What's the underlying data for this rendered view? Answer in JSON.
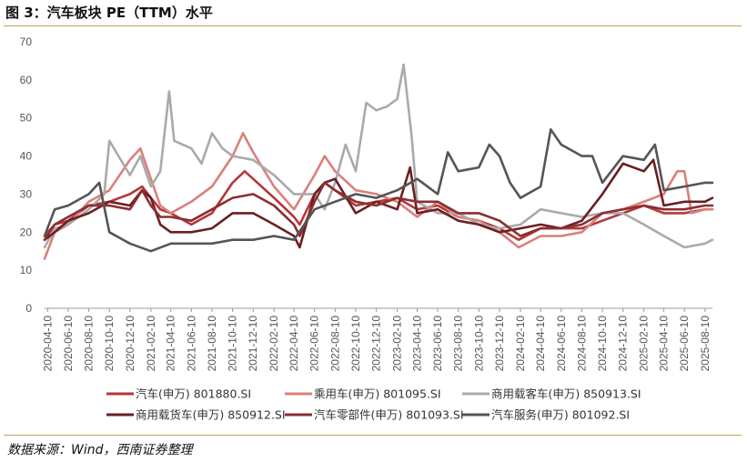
{
  "title": "图 3：汽车板块 PE（TTM）水平",
  "source": "数据来源：Wind，西南证券整理",
  "chart_data": {
    "type": "line",
    "title": "汽车板块 PE（TTM）水平",
    "xlabel": "",
    "ylabel": "",
    "ylim": [
      0,
      70
    ],
    "yticks": [
      0,
      10,
      20,
      30,
      40,
      50,
      60,
      70
    ],
    "grid": false,
    "legend_position": "bottom",
    "x_start": "2020-04-01",
    "x_end": "2025-09-01",
    "x_ticks": [
      "2020-04-10",
      "2020-06-10",
      "2020-08-10",
      "2020-10-10",
      "2020-12-10",
      "2021-02-10",
      "2021-04-10",
      "2021-06-10",
      "2021-08-10",
      "2021-10-10",
      "2021-12-10",
      "2022-02-10",
      "2022-04-10",
      "2022-06-10",
      "2022-08-10",
      "2022-10-10",
      "2022-12-10",
      "2023-02-10",
      "2023-04-10",
      "2023-06-10",
      "2023-08-10",
      "2023-10-10",
      "2023-12-10",
      "2024-02-10",
      "2024-04-10",
      "2024-06-10",
      "2024-08-10",
      "2024-10-10",
      "2024-12-10",
      "2025-02-10",
      "2025-04-10",
      "2025-06-10",
      "2025-08-10"
    ],
    "series": [
      {
        "name": "汽车(申万) 801880.SI",
        "color": "#b5363a",
        "points": [
          [
            "2020-04-01",
            19
          ],
          [
            "2020-05-01",
            22
          ],
          [
            "2020-06-10",
            23
          ],
          [
            "2020-08-10",
            27
          ],
          [
            "2020-10-10",
            28
          ],
          [
            "2020-12-10",
            30
          ],
          [
            "2021-01-15",
            32
          ],
          [
            "2021-02-10",
            29
          ],
          [
            "2021-03-10",
            26
          ],
          [
            "2021-04-10",
            25
          ],
          [
            "2021-06-10",
            22
          ],
          [
            "2021-08-10",
            25
          ],
          [
            "2021-10-10",
            33
          ],
          [
            "2021-11-15",
            36
          ],
          [
            "2021-12-10",
            34
          ],
          [
            "2022-02-10",
            29
          ],
          [
            "2022-04-10",
            24
          ],
          [
            "2022-04-27",
            22
          ],
          [
            "2022-06-10",
            30
          ],
          [
            "2022-07-10",
            33
          ],
          [
            "2022-08-10",
            31
          ],
          [
            "2022-10-10",
            27
          ],
          [
            "2022-12-10",
            28
          ],
          [
            "2023-02-10",
            29
          ],
          [
            "2023-04-10",
            26
          ],
          [
            "2023-06-10",
            27
          ],
          [
            "2023-08-10",
            24
          ],
          [
            "2023-10-10",
            23
          ],
          [
            "2023-12-10",
            21
          ],
          [
            "2024-02-05",
            18
          ],
          [
            "2024-04-10",
            21
          ],
          [
            "2024-06-10",
            21
          ],
          [
            "2024-08-10",
            21
          ],
          [
            "2024-10-10",
            23
          ],
          [
            "2024-12-10",
            25
          ],
          [
            "2025-02-10",
            27
          ],
          [
            "2025-04-10",
            25
          ],
          [
            "2025-06-10",
            25
          ],
          [
            "2025-08-10",
            26
          ],
          [
            "2025-09-01",
            26
          ]
        ]
      },
      {
        "name": "乘用车(申万) 801095.SI",
        "color": "#d9807a",
        "points": [
          [
            "2020-04-01",
            13
          ],
          [
            "2020-05-01",
            20
          ],
          [
            "2020-06-10",
            22
          ],
          [
            "2020-08-10",
            28
          ],
          [
            "2020-10-10",
            31
          ],
          [
            "2020-12-10",
            39
          ],
          [
            "2021-01-10",
            42
          ],
          [
            "2021-02-10",
            34
          ],
          [
            "2021-03-10",
            27
          ],
          [
            "2021-04-10",
            25
          ],
          [
            "2021-06-10",
            28
          ],
          [
            "2021-08-10",
            32
          ],
          [
            "2021-10-10",
            40
          ],
          [
            "2021-11-10",
            46
          ],
          [
            "2021-12-10",
            41
          ],
          [
            "2022-02-10",
            32
          ],
          [
            "2022-04-10",
            26
          ],
          [
            "2022-06-10",
            35
          ],
          [
            "2022-07-10",
            40
          ],
          [
            "2022-08-10",
            36
          ],
          [
            "2022-10-10",
            31
          ],
          [
            "2022-12-10",
            30
          ],
          [
            "2023-02-10",
            28
          ],
          [
            "2023-04-10",
            24
          ],
          [
            "2023-06-10",
            28
          ],
          [
            "2023-08-10",
            24
          ],
          [
            "2023-10-10",
            23
          ],
          [
            "2023-12-10",
            20
          ],
          [
            "2024-02-05",
            16
          ],
          [
            "2024-04-10",
            19
          ],
          [
            "2024-06-10",
            19
          ],
          [
            "2024-08-10",
            20
          ],
          [
            "2024-10-10",
            25
          ],
          [
            "2024-12-10",
            26
          ],
          [
            "2025-02-10",
            28
          ],
          [
            "2025-04-10",
            30
          ],
          [
            "2025-05-20",
            36
          ],
          [
            "2025-06-10",
            36
          ],
          [
            "2025-07-01",
            25
          ],
          [
            "2025-08-10",
            26
          ],
          [
            "2025-09-01",
            26
          ]
        ]
      },
      {
        "name": "商用载客车(申万) 850913.SI",
        "color": "#aaaaaa",
        "points": [
          [
            "2020-04-01",
            16
          ],
          [
            "2020-05-01",
            21
          ],
          [
            "2020-06-10",
            22
          ],
          [
            "2020-08-10",
            26
          ],
          [
            "2020-09-25",
            30
          ],
          [
            "2020-10-10",
            44
          ],
          [
            "2020-12-10",
            35
          ],
          [
            "2021-01-10",
            40
          ],
          [
            "2021-02-10",
            32
          ],
          [
            "2021-03-10",
            36
          ],
          [
            "2021-04-05",
            57
          ],
          [
            "2021-04-20",
            44
          ],
          [
            "2021-06-10",
            42
          ],
          [
            "2021-07-10",
            38
          ],
          [
            "2021-08-10",
            46
          ],
          [
            "2021-09-10",
            42
          ],
          [
            "2021-10-10",
            40
          ],
          [
            "2021-12-10",
            39
          ],
          [
            "2022-02-10",
            35
          ],
          [
            "2022-04-10",
            30
          ],
          [
            "2022-06-10",
            30
          ],
          [
            "2022-07-10",
            26
          ],
          [
            "2022-08-10",
            33
          ],
          [
            "2022-09-10",
            43
          ],
          [
            "2022-10-10",
            36
          ],
          [
            "2022-11-10",
            54
          ],
          [
            "2022-12-10",
            52
          ],
          [
            "2023-01-10",
            53
          ],
          [
            "2023-02-10",
            55
          ],
          [
            "2023-03-01",
            64
          ],
          [
            "2023-03-25",
            45
          ],
          [
            "2023-04-10",
            28
          ],
          [
            "2023-06-10",
            25
          ],
          [
            "2023-08-10",
            25
          ],
          [
            "2023-10-10",
            22
          ],
          [
            "2023-12-10",
            21
          ],
          [
            "2024-02-10",
            22
          ],
          [
            "2024-04-10",
            26
          ],
          [
            "2024-06-10",
            25
          ],
          [
            "2024-08-10",
            24
          ],
          [
            "2024-10-10",
            25
          ],
          [
            "2024-12-10",
            25
          ],
          [
            "2025-02-10",
            22
          ],
          [
            "2025-04-10",
            19
          ],
          [
            "2025-06-10",
            16
          ],
          [
            "2025-08-10",
            17
          ],
          [
            "2025-09-01",
            18
          ]
        ]
      },
      {
        "name": "商用载货车(申万) 850912.SI",
        "color": "#6b1f22",
        "points": [
          [
            "2020-04-01",
            18
          ],
          [
            "2020-05-01",
            20
          ],
          [
            "2020-06-10",
            23
          ],
          [
            "2020-08-10",
            25
          ],
          [
            "2020-10-10",
            28
          ],
          [
            "2020-12-10",
            27
          ],
          [
            "2021-01-15",
            31
          ],
          [
            "2021-02-10",
            29
          ],
          [
            "2021-03-10",
            22
          ],
          [
            "2021-04-10",
            20
          ],
          [
            "2021-06-10",
            20
          ],
          [
            "2021-08-10",
            21
          ],
          [
            "2021-10-10",
            25
          ],
          [
            "2021-12-10",
            25
          ],
          [
            "2022-02-10",
            22
          ],
          [
            "2022-04-10",
            19
          ],
          [
            "2022-04-27",
            16
          ],
          [
            "2022-06-10",
            30
          ],
          [
            "2022-07-10",
            33
          ],
          [
            "2022-08-10",
            34
          ],
          [
            "2022-10-10",
            25
          ],
          [
            "2022-12-10",
            28
          ],
          [
            "2023-02-10",
            26
          ],
          [
            "2023-03-20",
            37
          ],
          [
            "2023-04-10",
            25
          ],
          [
            "2023-06-10",
            26
          ],
          [
            "2023-08-10",
            23
          ],
          [
            "2023-10-10",
            22
          ],
          [
            "2023-12-10",
            20
          ],
          [
            "2024-02-10",
            21
          ],
          [
            "2024-04-10",
            22
          ],
          [
            "2024-06-10",
            21
          ],
          [
            "2024-08-10",
            23
          ],
          [
            "2024-10-10",
            30
          ],
          [
            "2024-12-10",
            38
          ],
          [
            "2025-02-10",
            36
          ],
          [
            "2025-03-10",
            39
          ],
          [
            "2025-04-10",
            27
          ],
          [
            "2025-06-10",
            28
          ],
          [
            "2025-08-10",
            28
          ],
          [
            "2025-09-01",
            29
          ]
        ]
      },
      {
        "name": "汽车零部件(申万) 801093.SI",
        "color": "#8b2e32",
        "points": [
          [
            "2020-04-01",
            18
          ],
          [
            "2020-05-01",
            22
          ],
          [
            "2020-06-10",
            24
          ],
          [
            "2020-08-10",
            27
          ],
          [
            "2020-10-10",
            27
          ],
          [
            "2020-12-10",
            26
          ],
          [
            "2021-01-15",
            31
          ],
          [
            "2021-02-10",
            27
          ],
          [
            "2021-03-10",
            24
          ],
          [
            "2021-04-10",
            24
          ],
          [
            "2021-06-10",
            23
          ],
          [
            "2021-08-10",
            26
          ],
          [
            "2021-10-10",
            29
          ],
          [
            "2021-12-10",
            30
          ],
          [
            "2022-02-10",
            27
          ],
          [
            "2022-04-10",
            22
          ],
          [
            "2022-04-27",
            19
          ],
          [
            "2022-06-10",
            28
          ],
          [
            "2022-07-10",
            33
          ],
          [
            "2022-08-10",
            31
          ],
          [
            "2022-10-10",
            28
          ],
          [
            "2022-12-10",
            27
          ],
          [
            "2023-02-10",
            29
          ],
          [
            "2023-04-10",
            28
          ],
          [
            "2023-06-10",
            28
          ],
          [
            "2023-08-10",
            25
          ],
          [
            "2023-10-10",
            25
          ],
          [
            "2023-12-10",
            23
          ],
          [
            "2024-02-10",
            19
          ],
          [
            "2024-04-10",
            21
          ],
          [
            "2024-06-10",
            21
          ],
          [
            "2024-08-10",
            22
          ],
          [
            "2024-10-10",
            25
          ],
          [
            "2024-12-10",
            26
          ],
          [
            "2025-02-10",
            27
          ],
          [
            "2025-04-10",
            26
          ],
          [
            "2025-06-10",
            26
          ],
          [
            "2025-08-10",
            27
          ],
          [
            "2025-09-01",
            27
          ]
        ]
      },
      {
        "name": "汽车服务(申万) 801092.SI",
        "color": "#555555",
        "points": [
          [
            "2020-04-01",
            19
          ],
          [
            "2020-05-01",
            26
          ],
          [
            "2020-06-10",
            27
          ],
          [
            "2020-08-10",
            30
          ],
          [
            "2020-09-10",
            33
          ],
          [
            "2020-10-10",
            20
          ],
          [
            "2020-12-10",
            17
          ],
          [
            "2021-02-10",
            15
          ],
          [
            "2021-04-10",
            17
          ],
          [
            "2021-06-10",
            17
          ],
          [
            "2021-08-10",
            17
          ],
          [
            "2021-10-10",
            18
          ],
          [
            "2021-12-10",
            18
          ],
          [
            "2022-02-10",
            19
          ],
          [
            "2022-04-10",
            18
          ],
          [
            "2022-06-10",
            26
          ],
          [
            "2022-08-10",
            28
          ],
          [
            "2022-10-10",
            30
          ],
          [
            "2022-12-10",
            29
          ],
          [
            "2023-02-10",
            31
          ],
          [
            "2023-04-10",
            34
          ],
          [
            "2023-06-10",
            30
          ],
          [
            "2023-07-10",
            41
          ],
          [
            "2023-08-10",
            36
          ],
          [
            "2023-10-10",
            37
          ],
          [
            "2023-11-10",
            43
          ],
          [
            "2023-12-10",
            40
          ],
          [
            "2024-01-10",
            33
          ],
          [
            "2024-02-10",
            29
          ],
          [
            "2024-04-10",
            32
          ],
          [
            "2024-05-10",
            47
          ],
          [
            "2024-06-10",
            43
          ],
          [
            "2024-08-10",
            40
          ],
          [
            "2024-09-10",
            40
          ],
          [
            "2024-10-10",
            33
          ],
          [
            "2024-12-10",
            40
          ],
          [
            "2025-02-10",
            39
          ],
          [
            "2025-03-15",
            43
          ],
          [
            "2025-04-10",
            31
          ],
          [
            "2025-06-10",
            32
          ],
          [
            "2025-08-10",
            33
          ],
          [
            "2025-09-01",
            33
          ]
        ]
      }
    ]
  }
}
